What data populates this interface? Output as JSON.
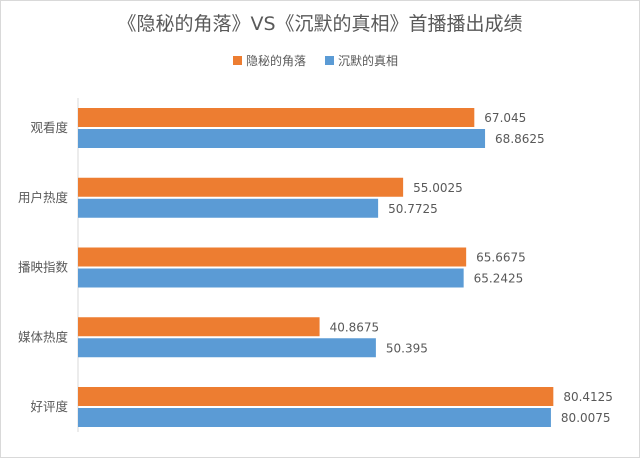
{
  "chart_data": {
    "type": "bar",
    "orientation": "horizontal",
    "title": "《隐秘的角落》VS《沉默的真相》首播播出成绩",
    "categories": [
      "观看度",
      "用户热度",
      "播映指数",
      "媒体热度",
      "好评度"
    ],
    "series": [
      {
        "name": "隐秘的角落",
        "color": "#ed7d31",
        "values": [
          67.045,
          55.0025,
          65.6675,
          40.8675,
          80.4125
        ]
      },
      {
        "name": "沉默的真相",
        "color": "#5b9bd5",
        "values": [
          68.8625,
          50.7725,
          65.2425,
          50.395,
          80.0075
        ]
      }
    ],
    "value_labels": [
      [
        "67.045",
        "55.0025",
        "65.6675",
        "40.8675",
        "80.4125"
      ],
      [
        "68.8625",
        "50.7725",
        "65.2425",
        "50.395",
        "80.0075"
      ]
    ],
    "xlim": [
      0,
      90
    ],
    "legend": "top-center",
    "grid": false
  }
}
